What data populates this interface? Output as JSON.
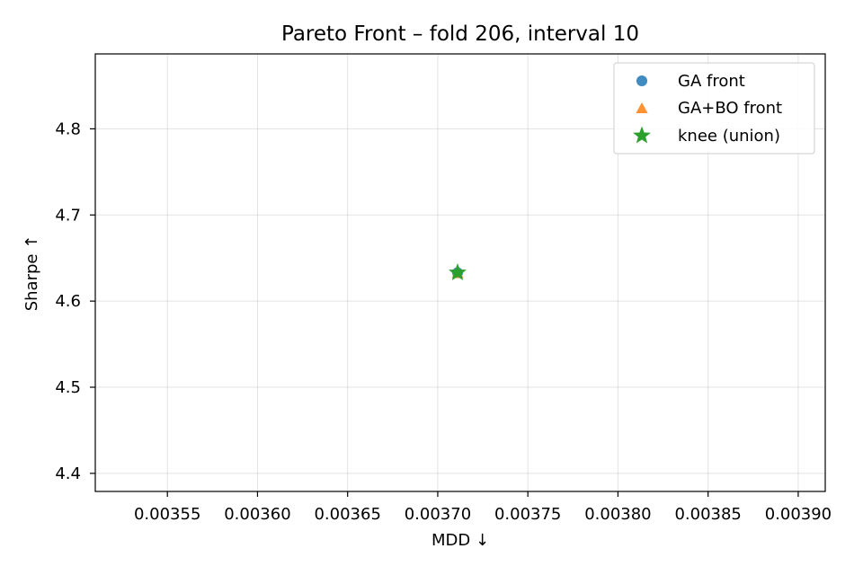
{
  "chart_data": {
    "type": "scatter",
    "title": "Pareto Front – fold 206, interval 10",
    "xlabel": "MDD ↓",
    "ylabel": "Sharpe ↑",
    "xlim": [
      0.00351,
      0.003915
    ],
    "ylim": [
      4.379,
      4.887
    ],
    "xticks": [
      0.00355,
      0.0036,
      0.00365,
      0.0037,
      0.00375,
      0.0038,
      0.00385,
      0.0039
    ],
    "xtick_labels": [
      "0.00355",
      "0.00360",
      "0.00365",
      "0.00370",
      "0.00375",
      "0.00380",
      "0.00385",
      "0.00390"
    ],
    "yticks": [
      4.4,
      4.5,
      4.6,
      4.7,
      4.8
    ],
    "ytick_labels": [
      "4.4",
      "4.5",
      "4.6",
      "4.7",
      "4.8"
    ],
    "grid": true,
    "legend_position": "top-right",
    "series": [
      {
        "name": "GA front",
        "marker": "circle",
        "color": "#1f77b4",
        "x": [
          0.003711
        ],
        "y": [
          4.633
        ]
      },
      {
        "name": "GA+BO front",
        "marker": "triangle",
        "color": "#ff7f0e",
        "x": [
          0.003711
        ],
        "y": [
          4.633
        ]
      },
      {
        "name": "knee (union)",
        "marker": "star",
        "color": "#2ca02c",
        "x": [
          0.003711
        ],
        "y": [
          4.633
        ]
      }
    ]
  }
}
